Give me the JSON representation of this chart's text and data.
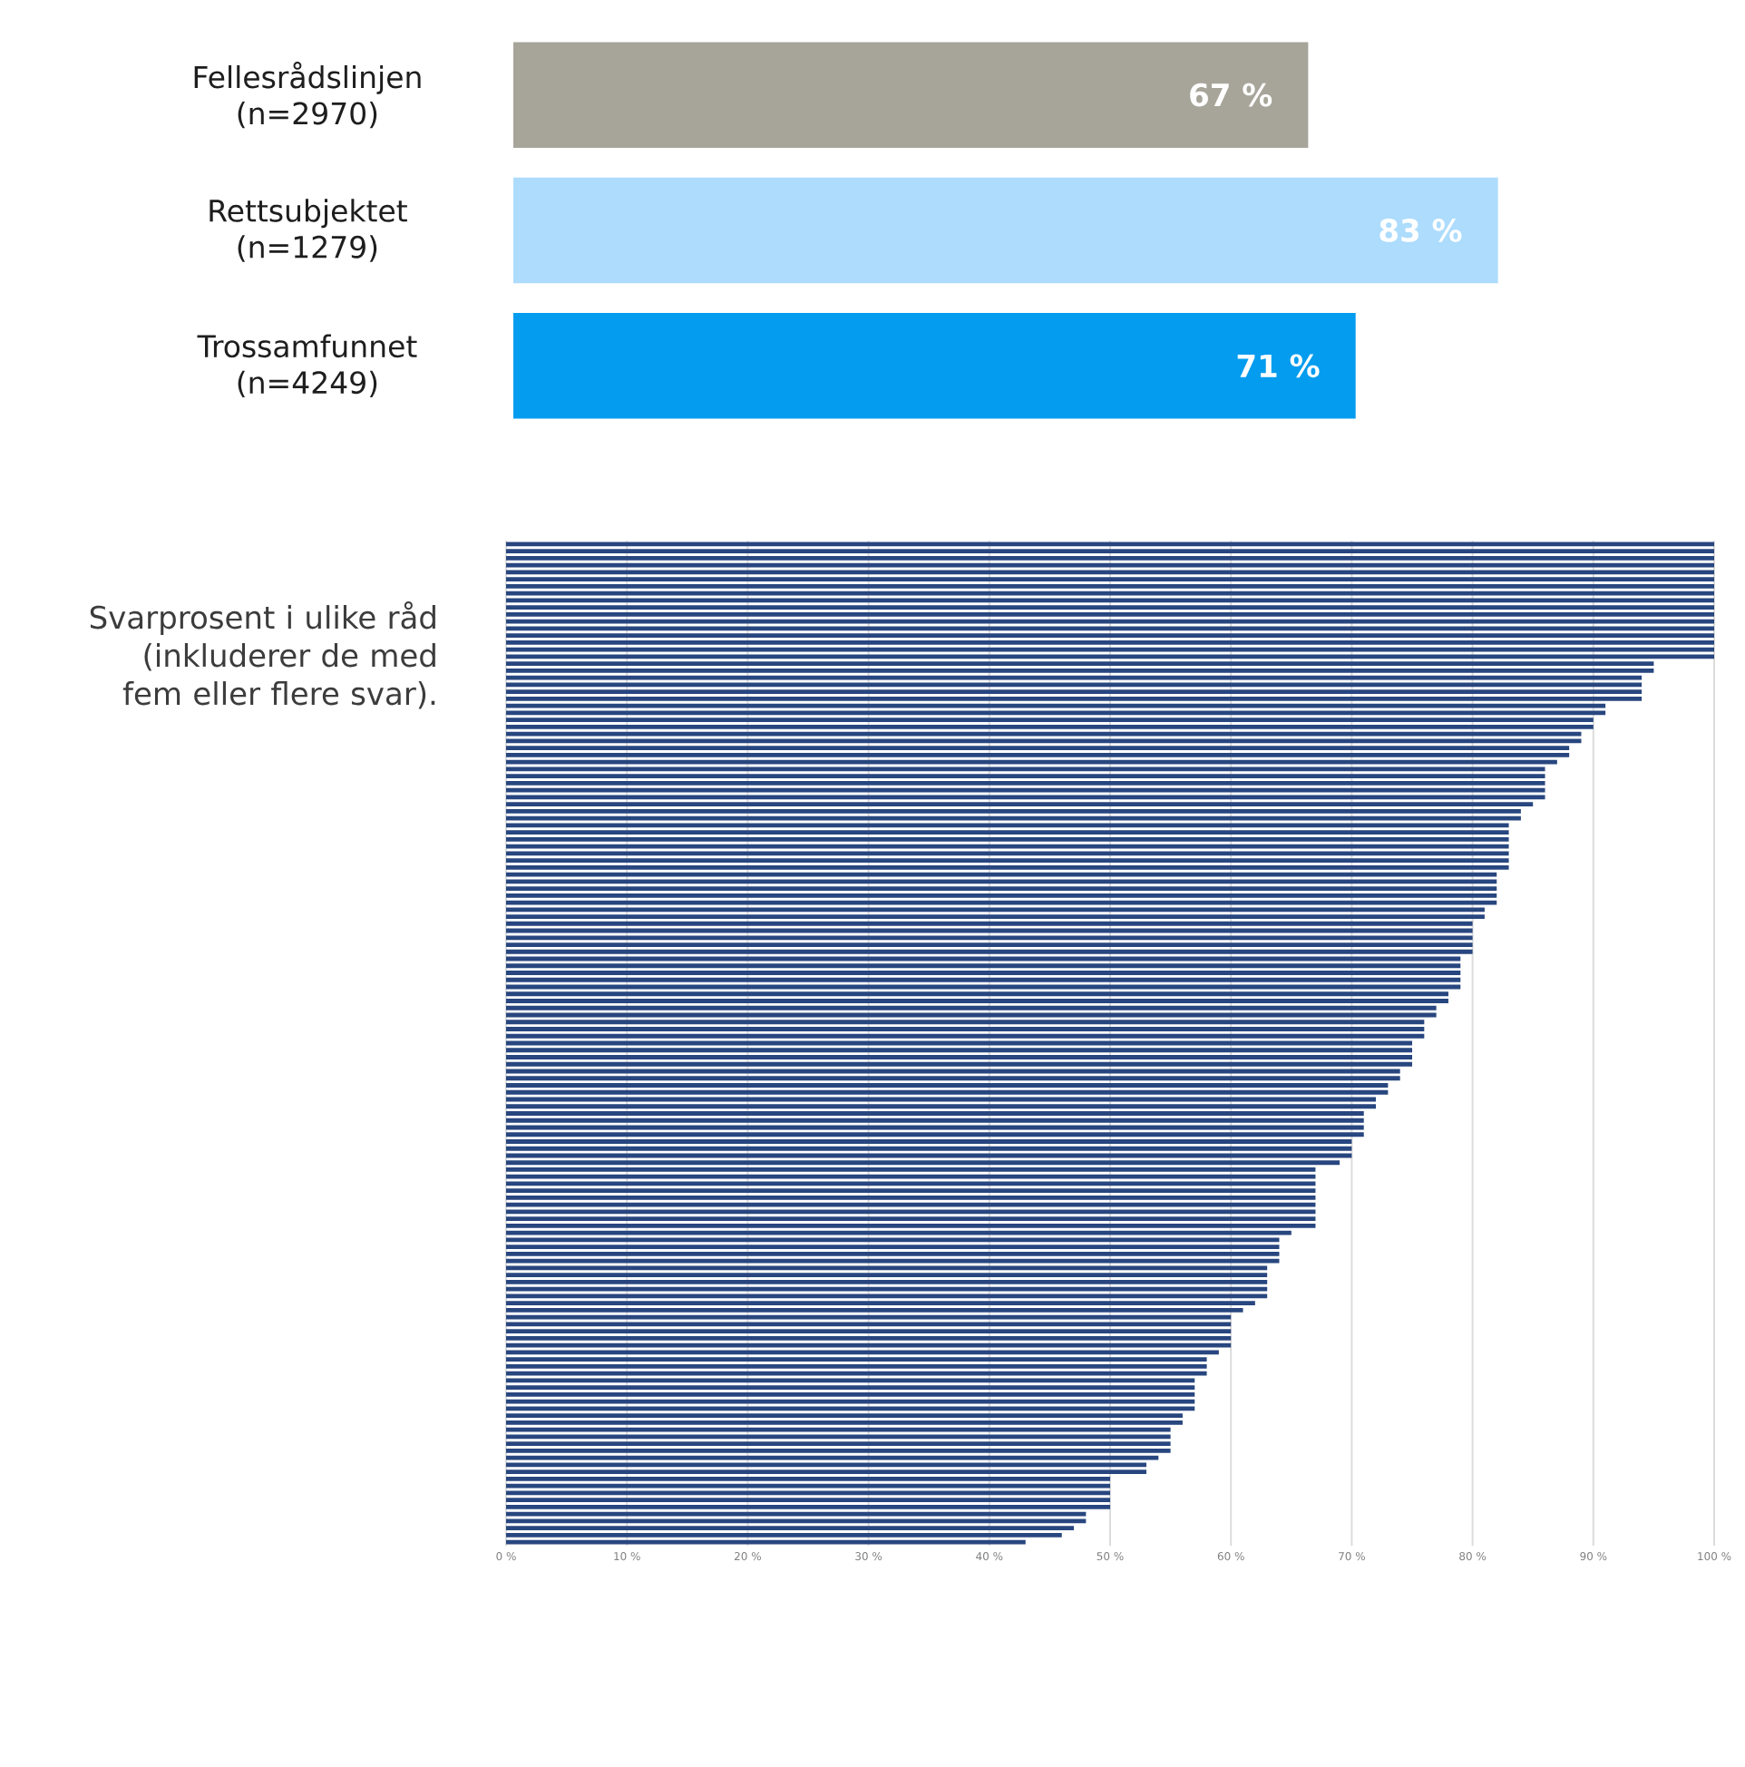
{
  "chart_data": [
    {
      "type": "bar",
      "orientation": "horizontal",
      "categories": [
        "Fellesrådslinjen (n=2970)",
        "Rettsubjektet (n=1279)",
        "Trossamfunnet (n=4249)"
      ],
      "values": [
        67,
        83,
        71
      ],
      "colors": [
        "#a7a59a",
        "#addcfd",
        "#039cef"
      ],
      "value_labels": [
        "67 %",
        "83 %",
        "71 %"
      ]
    },
    {
      "type": "bar",
      "orientation": "horizontal",
      "color": "#28467f",
      "categories": [
        null,
        null,
        null,
        null,
        null,
        null,
        null,
        null,
        null,
        null,
        null,
        null,
        null,
        null,
        null,
        null,
        null,
        null,
        null,
        null,
        null,
        null,
        null,
        null,
        null,
        null,
        null,
        null,
        null,
        null,
        null,
        null,
        null,
        null,
        null,
        null,
        null,
        null,
        null,
        null,
        null,
        null,
        null,
        null,
        null,
        null,
        null,
        null,
        null,
        null,
        null,
        null,
        null,
        null,
        null,
        null,
        null,
        null,
        null,
        null,
        null,
        null,
        null,
        null,
        null,
        null,
        null,
        null,
        null,
        null,
        null,
        null,
        null,
        null,
        null,
        null,
        null,
        null,
        null,
        null,
        null,
        null,
        null,
        null,
        null,
        null,
        null,
        null,
        null,
        null,
        null,
        null,
        null,
        null,
        null,
        null,
        null,
        null,
        null,
        null,
        null,
        null,
        null,
        null,
        null,
        null,
        null,
        null,
        null,
        null,
        null,
        null,
        null,
        null,
        null,
        null,
        null,
        null,
        null,
        null,
        null,
        null,
        null,
        null,
        null,
        null,
        null,
        null,
        null,
        null,
        null,
        null,
        null,
        null,
        null,
        null,
        null,
        null,
        null,
        null,
        null,
        null,
        null
      ],
      "values": [
        100,
        100,
        100,
        100,
        100,
        100,
        100,
        100,
        100,
        100,
        100,
        100,
        100,
        100,
        100,
        100,
        100,
        95,
        95,
        94,
        94,
        94,
        94,
        91,
        91,
        90,
        90,
        89,
        89,
        88,
        88,
        87,
        86,
        86,
        86,
        86,
        86,
        85,
        84,
        84,
        83,
        83,
        83,
        83,
        83,
        83,
        83,
        82,
        82,
        82,
        82,
        82,
        81,
        81,
        80,
        80,
        80,
        80,
        80,
        79,
        79,
        79,
        79,
        79,
        78,
        78,
        77,
        77,
        76,
        76,
        76,
        75,
        75,
        75,
        75,
        74,
        74,
        73,
        73,
        72,
        72,
        71,
        71,
        71,
        71,
        70,
        70,
        70,
        69,
        67,
        67,
        67,
        67,
        67,
        67,
        67,
        67,
        67,
        65,
        64,
        64,
        64,
        64,
        63,
        63,
        63,
        63,
        63,
        62,
        61,
        60,
        60,
        60,
        60,
        60,
        59,
        58,
        58,
        58,
        57,
        57,
        57,
        57,
        57,
        56,
        56,
        55,
        55,
        55,
        55,
        54,
        53,
        53,
        50,
        50,
        50,
        50,
        50,
        48,
        48,
        47,
        46,
        43
      ],
      "xlim": [
        0,
        100
      ],
      "xticks": [
        {
          "value": 0,
          "label": "0 %"
        },
        {
          "value": 10,
          "label": "10 %"
        },
        {
          "value": 20,
          "label": "20 %"
        },
        {
          "value": 30,
          "label": "30 %"
        },
        {
          "value": 40,
          "label": "40 %"
        },
        {
          "value": 50,
          "label": "50 %"
        },
        {
          "value": 60,
          "label": "60 %"
        },
        {
          "value": 70,
          "label": "70 %"
        },
        {
          "value": 80,
          "label": "80 %"
        },
        {
          "value": 90,
          "label": "90 %"
        },
        {
          "value": 100,
          "label": "100 %"
        }
      ],
      "grid": "x",
      "tick_labels": "x",
      "annotations": [
        "Svarprosent i ulike råd (inkluderer de med fem eller flere svar)."
      ]
    }
  ]
}
